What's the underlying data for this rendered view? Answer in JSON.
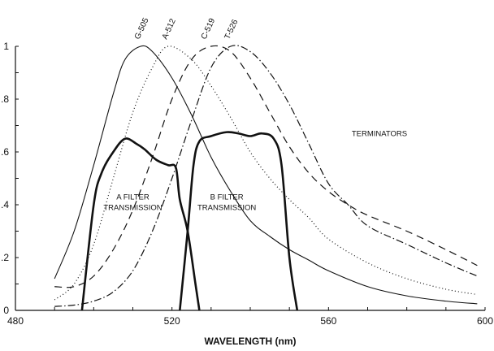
{
  "chart_data": {
    "type": "line",
    "title": "",
    "xlabel": "WAVELENGTH (nm)",
    "ylabel": "",
    "xlim": [
      480,
      600
    ],
    "ylim": [
      0,
      1
    ],
    "xticks": [
      480,
      520,
      560,
      600
    ],
    "xtick_labels": [
      "480",
      "520",
      "560",
      "600"
    ],
    "yticks": [
      0,
      0.2,
      0.4,
      0.6,
      0.8,
      1
    ],
    "ytick_labels": [
      "0",
      ".2",
      ".4",
      ".6",
      ".8",
      "1"
    ],
    "grid": false,
    "annotations": [
      {
        "text": "TERMINATORS",
        "x": 573,
        "y": 0.66
      },
      {
        "text": "A FILTER",
        "x": 510,
        "y": 0.42
      },
      {
        "text": "TRANSMISSION",
        "x": 510,
        "y": 0.38
      },
      {
        "text": "B FILTER",
        "x": 534,
        "y": 0.42
      },
      {
        "text": "TRANSMISSION",
        "x": 534,
        "y": 0.38
      }
    ],
    "series": [
      {
        "name": "G-505",
        "style": "solid-thin",
        "x": [
          490,
          495,
          500,
          505,
          508,
          512,
          515,
          520,
          525,
          530,
          535,
          540,
          545,
          550,
          555,
          560,
          570,
          580,
          590,
          598
        ],
        "y": [
          0.12,
          0.3,
          0.55,
          0.82,
          0.95,
          1.0,
          0.98,
          0.88,
          0.74,
          0.58,
          0.45,
          0.34,
          0.28,
          0.23,
          0.19,
          0.15,
          0.09,
          0.055,
          0.035,
          0.025
        ]
      },
      {
        "name": "A-512",
        "style": "dotted",
        "x": [
          490,
          495,
          500,
          505,
          510,
          515,
          519,
          525,
          530,
          535,
          540,
          545,
          550,
          555,
          560,
          570,
          580,
          590,
          598
        ],
        "y": [
          0.04,
          0.1,
          0.25,
          0.5,
          0.75,
          0.92,
          1.0,
          0.95,
          0.85,
          0.73,
          0.6,
          0.5,
          0.42,
          0.35,
          0.27,
          0.18,
          0.12,
          0.08,
          0.06
        ]
      },
      {
        "name": "C-519",
        "style": "dashed",
        "x": [
          490,
          495,
          500,
          505,
          510,
          515,
          520,
          525,
          530,
          535,
          540,
          545,
          550,
          555,
          560,
          565,
          570,
          580,
          590,
          598
        ],
        "y": [
          0.09,
          0.09,
          0.13,
          0.23,
          0.38,
          0.58,
          0.8,
          0.95,
          1.0,
          0.98,
          0.88,
          0.75,
          0.62,
          0.52,
          0.45,
          0.4,
          0.36,
          0.3,
          0.23,
          0.17
        ]
      },
      {
        "name": "T-526",
        "style": "dash-dot",
        "x": [
          490,
          495,
          500,
          505,
          510,
          515,
          520,
          525,
          530,
          535,
          540,
          545,
          550,
          555,
          560,
          565,
          570,
          580,
          590,
          598
        ],
        "y": [
          0.015,
          0.02,
          0.035,
          0.07,
          0.15,
          0.3,
          0.5,
          0.72,
          0.92,
          1.0,
          0.98,
          0.9,
          0.78,
          0.63,
          0.48,
          0.4,
          0.32,
          0.25,
          0.18,
          0.13
        ]
      },
      {
        "name": "A FILTER TRANSMISSION",
        "style": "thick",
        "x": [
          497,
          500,
          502,
          505,
          508,
          511,
          513,
          516,
          519,
          521,
          522,
          524,
          526,
          527
        ],
        "y": [
          0,
          0.4,
          0.52,
          0.6,
          0.65,
          0.63,
          0.61,
          0.57,
          0.55,
          0.54,
          0.42,
          0.3,
          0.1,
          0
        ]
      },
      {
        "name": "B FILTER TRANSMISSION",
        "style": "thick",
        "x": [
          522,
          524,
          525.5,
          527,
          530,
          534,
          537,
          540,
          543,
          546,
          548,
          550,
          552
        ],
        "y": [
          0,
          0.3,
          0.55,
          0.64,
          0.66,
          0.675,
          0.67,
          0.66,
          0.67,
          0.65,
          0.55,
          0.2,
          0
        ]
      }
    ],
    "curve_labels": [
      {
        "text": "G-505",
        "x": 512
      },
      {
        "text": "A-512",
        "x": 519
      },
      {
        "text": "C-519",
        "x": 529
      },
      {
        "text": "T-526",
        "x": 535
      }
    ]
  }
}
